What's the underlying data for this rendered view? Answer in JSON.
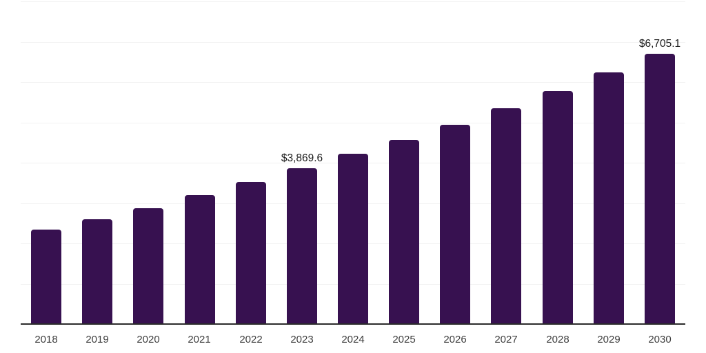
{
  "chart_data": {
    "type": "bar",
    "title": "",
    "xlabel": "",
    "ylabel": "",
    "categories": [
      "2018",
      "2019",
      "2020",
      "2021",
      "2022",
      "2023",
      "2024",
      "2025",
      "2026",
      "2027",
      "2028",
      "2029",
      "2030"
    ],
    "values": [
      2350,
      2590,
      2865,
      3190,
      3515,
      3869.6,
      4215,
      4565,
      4945,
      5355,
      5785,
      6245,
      6705.1
    ],
    "labeled_points": [
      {
        "category": "2023",
        "label": "$3,869.6"
      },
      {
        "category": "2030",
        "label": "$6,705.1"
      }
    ],
    "ylim": [
      0,
      8000
    ],
    "gridline_step": 1000,
    "grid": "horizontal-only",
    "legend": "none",
    "colors": {
      "bar": "#371150",
      "gridline": "#f2f2f2",
      "axis_line": "#2b2b2b",
      "x_tick_label": "#3d3d3d",
      "data_label": "#1a1a1a"
    }
  }
}
